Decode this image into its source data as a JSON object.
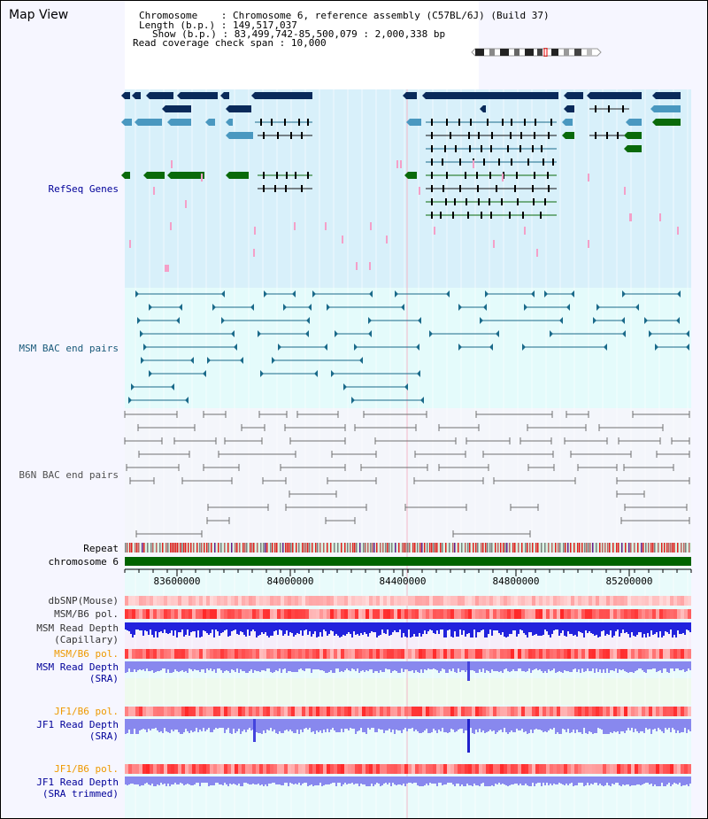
{
  "title": "Map View",
  "info": {
    "chromosome_label": "Chromosome",
    "chromosome_value": "Chromosome 6, reference assembly (C57BL/6J) (Build 37)",
    "length_label": "Length (b.p.)",
    "length_value": "149,517,037",
    "show_label": "Show (b.p.)",
    "show_value": "83,499,742-85,500,079 : 2,000,338 bp",
    "coverage_label": "Read coverage check span",
    "coverage_value": "10,000"
  },
  "tracks": {
    "refseq": "RefSeq Genes",
    "msm_bac": "MSM BAC end pairs",
    "b6n_bac": "B6N BAC end pairs",
    "repeat": "Repeat",
    "chromosome": "chromosome 6",
    "dbsnp": "dbSNP(Mouse)",
    "msm_pol": "MSM/B6 pol.",
    "msm_depth_cap_1": "MSM Read Depth",
    "msm_depth_cap_2": "(Capillary)",
    "msm_pol2": "MSM/B6 pol.",
    "msm_depth_sra_1": "MSM Read Depth",
    "msm_depth_sra_2": "(SRA)",
    "jf1_pol": "JF1/B6 pol.",
    "jf1_depth_sra_1": "JF1 Read Depth",
    "jf1_depth_sra_2": "(SRA)",
    "jf1_pol2": "JF1/B6 pol.",
    "jf1_depth_trim_1": "JF1 Read Depth",
    "jf1_depth_trim_2": "(SRA trimmed)"
  },
  "axis": {
    "ticks": [
      "83600000",
      "84000000",
      "84400000",
      "84800000",
      "85200000"
    ]
  },
  "colors": {
    "refseq_bg": "#d8f0fa",
    "msm_bg": "#e4fbfb",
    "b6n_bg": "#f4f6fb",
    "gene_dark": "#0a2a5a",
    "gene_mid": "#4a98c0",
    "gene_green": "#0a6a0a",
    "chrom_green": "#006400",
    "msm_link": "#1a6a8a",
    "b6n_link": "#707070",
    "depth_blue": "#2222dd",
    "depth_sra": "#8888ee",
    "orange_label": "#ee9900",
    "navy_label": "#000099",
    "teal_label": "#1a5a7a"
  }
}
